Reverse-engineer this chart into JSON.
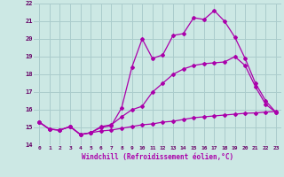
{
  "background_color": "#cce8e4",
  "grid_color": "#aacccc",
  "line_color": "#aa00aa",
  "xlabel": "Windchill (Refroidissement éolien,°C)",
  "xlim": [
    -0.5,
    23.5
  ],
  "ylim": [
    14,
    22
  ],
  "yticks": [
    14,
    15,
    16,
    17,
    18,
    19,
    20,
    21,
    22
  ],
  "xticks": [
    0,
    1,
    2,
    3,
    4,
    5,
    6,
    7,
    8,
    9,
    10,
    11,
    12,
    13,
    14,
    15,
    16,
    17,
    18,
    19,
    20,
    21,
    22,
    23
  ],
  "line1_x": [
    0,
    1,
    2,
    3,
    4,
    5,
    6,
    7,
    8,
    9,
    10,
    11,
    12,
    13,
    14,
    15,
    16,
    17,
    18,
    19,
    20,
    21,
    22,
    23
  ],
  "line1_y": [
    15.3,
    14.9,
    14.85,
    15.05,
    14.6,
    14.7,
    14.8,
    14.85,
    14.95,
    15.05,
    15.15,
    15.2,
    15.3,
    15.35,
    15.45,
    15.55,
    15.6,
    15.65,
    15.7,
    15.75,
    15.8,
    15.82,
    15.87,
    15.9
  ],
  "line2_x": [
    0,
    1,
    2,
    3,
    4,
    5,
    6,
    7,
    8,
    9,
    10,
    11,
    12,
    13,
    14,
    15,
    16,
    17,
    18,
    19,
    20,
    21,
    22,
    23
  ],
  "line2_y": [
    15.3,
    14.9,
    14.85,
    15.05,
    14.6,
    14.7,
    15.0,
    15.1,
    16.1,
    18.4,
    20.0,
    18.9,
    19.1,
    20.2,
    20.3,
    21.2,
    21.1,
    21.6,
    21.0,
    20.1,
    18.9,
    17.5,
    16.5,
    15.85
  ],
  "line3_x": [
    0,
    1,
    2,
    3,
    4,
    5,
    6,
    7,
    8,
    9,
    10,
    11,
    12,
    13,
    14,
    15,
    16,
    17,
    18,
    19,
    20,
    21,
    22,
    23
  ],
  "line3_y": [
    15.3,
    14.9,
    14.85,
    15.05,
    14.6,
    14.7,
    15.05,
    15.15,
    15.6,
    16.0,
    16.2,
    17.0,
    17.5,
    18.0,
    18.3,
    18.5,
    18.6,
    18.65,
    18.7,
    19.0,
    18.5,
    17.3,
    16.3,
    15.85
  ],
  "marker": "D",
  "marker_size": 2.0,
  "line_width": 0.9
}
